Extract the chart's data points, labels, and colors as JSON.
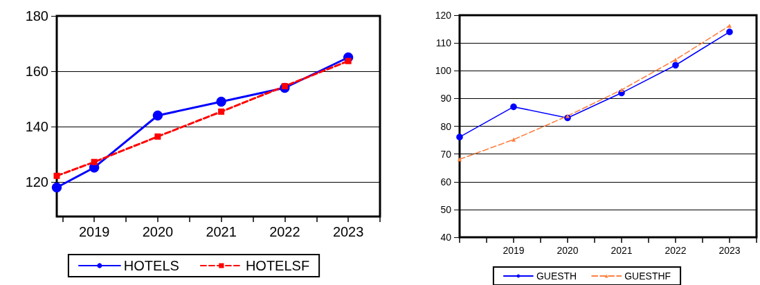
{
  "chart_data": [
    {
      "type": "line",
      "x": [
        2018.41,
        2019,
        2020,
        2021,
        2022,
        2023
      ],
      "xlim": [
        2018.41,
        2023.5
      ],
      "xticks": [
        {
          "value": 2018.5,
          "label": null
        },
        2019,
        {
          "value": 2019.5,
          "label": null
        },
        2020,
        {
          "value": 2020.5,
          "label": null
        },
        2021,
        {
          "value": 2021.5,
          "label": null
        },
        2022,
        {
          "value": 2022.5,
          "label": null
        },
        2023,
        {
          "value": 2023.5,
          "label": null
        }
      ],
      "ylim": [
        107.5,
        180
      ],
      "yticks": [
        120,
        140,
        160,
        180
      ],
      "grid": "y",
      "legend": "bottom",
      "series": [
        {
          "name": "HOTELS",
          "color": "#0000ff",
          "values": [
            118,
            125.2,
            144,
            149,
            154,
            165
          ],
          "marker": "circle",
          "line_style": "solid"
        },
        {
          "name": "HOTELSF",
          "color": "#ff0000",
          "values": [
            122.2,
            127.2,
            136.4,
            145.4,
            154.6,
            163.7
          ],
          "marker": "square",
          "line_style": "dashed"
        }
      ]
    },
    {
      "type": "line",
      "x": [
        2018,
        2019,
        2020,
        2021,
        2022,
        2023
      ],
      "xlim": [
        2018,
        2023.5
      ],
      "xticks": [
        {
          "value": 2018,
          "label": null
        },
        {
          "value": 2018.5,
          "label": null
        },
        2019,
        {
          "value": 2019.5,
          "label": null
        },
        2020,
        {
          "value": 2020.5,
          "label": null
        },
        2021,
        {
          "value": 2021.5,
          "label": null
        },
        2022,
        {
          "value": 2022.5,
          "label": null
        },
        2023,
        {
          "value": 2023.5,
          "label": null
        }
      ],
      "ylim": [
        40,
        120
      ],
      "yticks": [
        40,
        50,
        60,
        70,
        80,
        90,
        100,
        110,
        120
      ],
      "grid": "y",
      "legend": "bottom",
      "series": [
        {
          "name": "GUESTH",
          "color": "#0000ff",
          "values": [
            76.1,
            87,
            83,
            92,
            102,
            114
          ],
          "marker": "circle",
          "line_style": "solid"
        },
        {
          "name": "GUESTHF",
          "color": "#ff7f3f",
          "values": [
            68.1,
            75.2,
            83.7,
            93.1,
            104,
            116.2
          ],
          "marker": "triangle",
          "line_style": "dashed"
        }
      ]
    }
  ]
}
